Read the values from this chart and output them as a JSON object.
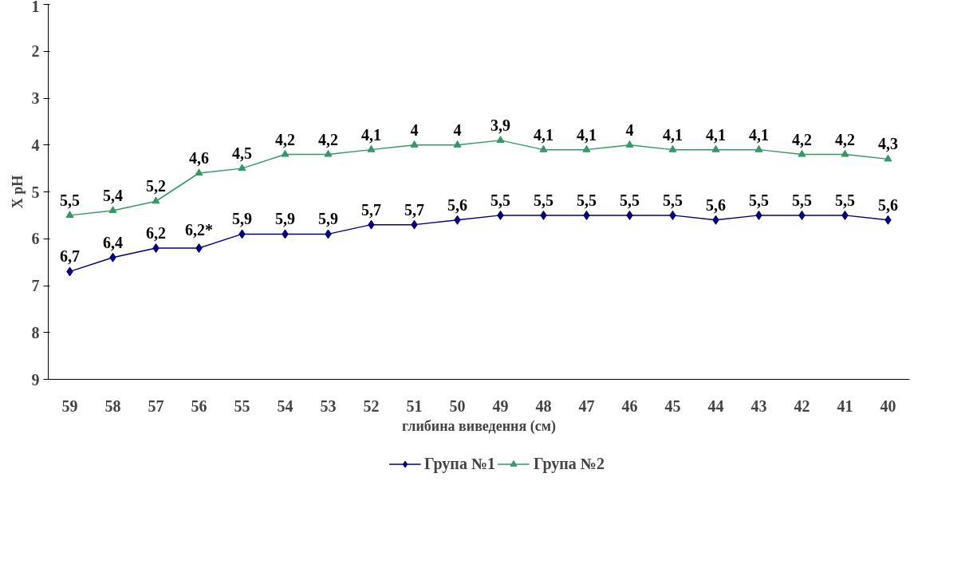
{
  "chart_data": {
    "type": "line",
    "xlabel": "глибина виведення (см)",
    "ylabel": "X pH",
    "categories": [
      "59",
      "58",
      "57",
      "56",
      "55",
      "54",
      "53",
      "52",
      "51",
      "50",
      "49",
      "48",
      "47",
      "46",
      "45",
      "44",
      "43",
      "42",
      "41",
      "40"
    ],
    "ylim": [
      9,
      1
    ],
    "yticks": [
      1,
      2,
      3,
      4,
      5,
      6,
      7,
      8,
      9
    ],
    "grid": false,
    "legend": "bottom",
    "series": [
      {
        "name": "Група №1",
        "color": "#000080",
        "marker": "diamond",
        "values": [
          6.7,
          6.4,
          6.2,
          6.2,
          5.9,
          5.9,
          5.9,
          5.7,
          5.7,
          5.6,
          5.5,
          5.5,
          5.5,
          5.5,
          5.5,
          5.6,
          5.5,
          5.5,
          5.5,
          5.6
        ],
        "value_labels": [
          "6,7",
          "6,4",
          "6,2",
          "6,2*",
          "5,9",
          "5,9",
          "5,9",
          "5,7",
          "5,7",
          "5,6",
          "5,5",
          "5,5",
          "5,5",
          "5,5",
          "5,5",
          "5,6",
          "5,5",
          "5,5",
          "5,5",
          "5,6"
        ]
      },
      {
        "name": "Група №2",
        "color": "#339966",
        "marker": "triangle",
        "values": [
          5.5,
          5.4,
          5.2,
          4.6,
          4.5,
          4.2,
          4.2,
          4.1,
          4,
          4,
          3.9,
          4.1,
          4.1,
          4,
          4.1,
          4.1,
          4.1,
          4.2,
          4.2,
          4.3
        ],
        "value_labels": [
          "5,5",
          "5,4",
          "5,2",
          "4,6",
          "4,5",
          "4,2",
          "4,2",
          "4,1",
          "4",
          "4",
          "3,9",
          "4,1",
          "4,1",
          "4",
          "4,1",
          "4,1",
          "4,1",
          "4,2",
          "4,2",
          "4,3"
        ]
      }
    ]
  }
}
